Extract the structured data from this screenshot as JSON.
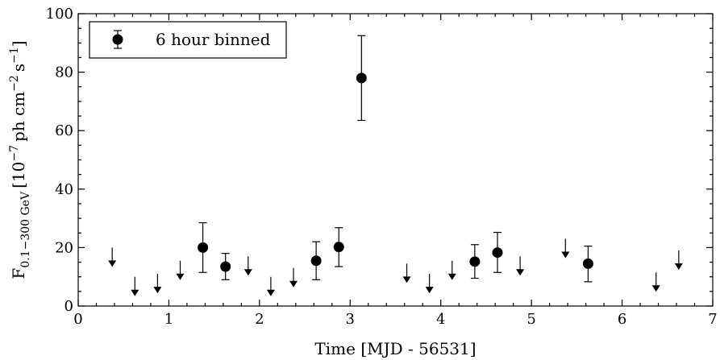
{
  "chart_data": {
    "type": "scatter",
    "xlabel": "Time [MJD - 56531]",
    "ylabel": {
      "base": "F",
      "subscript": "0.1−300 GeV",
      "units_pre": "[10",
      "exp1": "−7",
      "units_mid": "ph cm",
      "exp2": "−2",
      "units_s": "s",
      "exp3": "−1",
      "units_post": "]"
    },
    "xlim": [
      0,
      7
    ],
    "ylim": [
      0,
      100
    ],
    "xticks": [
      0,
      1,
      2,
      3,
      4,
      5,
      6,
      7
    ],
    "yticks": [
      0,
      20,
      40,
      60,
      80,
      100
    ],
    "legend": {
      "label": "6 hour binned",
      "position": "top-left"
    },
    "series": [
      {
        "name": "6 hour binned",
        "points": [
          {
            "x": 1.375,
            "y": 20.0,
            "ylo": 11.5,
            "yhi": 28.5
          },
          {
            "x": 1.625,
            "y": 13.5,
            "ylo": 9.0,
            "yhi": 18.0
          },
          {
            "x": 2.625,
            "y": 15.5,
            "ylo": 9.0,
            "yhi": 22.0
          },
          {
            "x": 2.875,
            "y": 20.2,
            "ylo": 13.5,
            "yhi": 26.8
          },
          {
            "x": 3.125,
            "y": 78.0,
            "ylo": 63.5,
            "yhi": 92.5
          },
          {
            "x": 4.375,
            "y": 15.2,
            "ylo": 9.5,
            "yhi": 21.0
          },
          {
            "x": 4.625,
            "y": 18.3,
            "ylo": 11.5,
            "yhi": 25.2
          },
          {
            "x": 5.625,
            "y": 14.5,
            "ylo": 8.3,
            "yhi": 20.5
          }
        ]
      }
    ],
    "upper_limits": [
      {
        "x": 0.375,
        "y": 20.0
      },
      {
        "x": 0.625,
        "y": 10.0
      },
      {
        "x": 0.875,
        "y": 11.0
      },
      {
        "x": 1.125,
        "y": 15.5
      },
      {
        "x": 1.875,
        "y": 17.0
      },
      {
        "x": 2.125,
        "y": 10.0
      },
      {
        "x": 2.375,
        "y": 13.0
      },
      {
        "x": 3.625,
        "y": 14.5
      },
      {
        "x": 3.875,
        "y": 11.0
      },
      {
        "x": 4.125,
        "y": 15.5
      },
      {
        "x": 4.875,
        "y": 17.0
      },
      {
        "x": 5.375,
        "y": 23.0
      },
      {
        "x": 6.375,
        "y": 11.5
      },
      {
        "x": 6.625,
        "y": 19.0
      }
    ]
  }
}
